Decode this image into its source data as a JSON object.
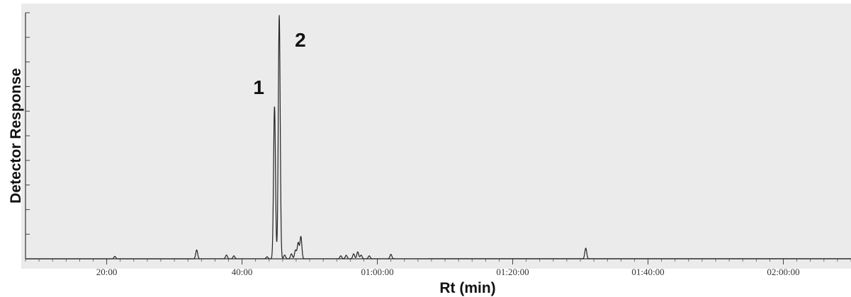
{
  "chart_data": {
    "type": "line",
    "title": "",
    "xlabel": "Rt  (min)",
    "ylabel": "Detector  Response",
    "xlim": [
      8,
      130
    ],
    "ylim": [
      0,
      100
    ],
    "y_tick_labels_shown": false,
    "grid": false,
    "x_ticks": [
      {
        "value": 20,
        "label": "20:00"
      },
      {
        "value": 40,
        "label": "40:00"
      },
      {
        "value": 60,
        "label": "01:00:00"
      },
      {
        "value": 80,
        "label": "01:20:00"
      },
      {
        "value": 100,
        "label": "01:40:00"
      },
      {
        "value": 120,
        "label": "02:00:00"
      }
    ],
    "series": [
      {
        "peaks": [
          {
            "x": 21.2,
            "y": 1.0
          },
          {
            "x": 33.3,
            "y": 3.6
          },
          {
            "x": 37.7,
            "y": 1.5
          },
          {
            "x": 38.8,
            "y": 1.2
          },
          {
            "x": 43.7,
            "y": 0.8
          },
          {
            "x": 44.8,
            "y": 62
          },
          {
            "x": 45.5,
            "y": 99
          },
          {
            "x": 46.3,
            "y": 1.5
          },
          {
            "x": 47.3,
            "y": 2.0
          },
          {
            "x": 47.9,
            "y": 3.5
          },
          {
            "x": 48.3,
            "y": 6.5
          },
          {
            "x": 48.7,
            "y": 9.0
          },
          {
            "x": 54.6,
            "y": 1.2
          },
          {
            "x": 55.4,
            "y": 1.4
          },
          {
            "x": 56.5,
            "y": 2.0
          },
          {
            "x": 57.1,
            "y": 2.8
          },
          {
            "x": 57.6,
            "y": 1.5
          },
          {
            "x": 58.8,
            "y": 1.2
          },
          {
            "x": 62.0,
            "y": 1.8
          },
          {
            "x": 90.8,
            "y": 4.3
          }
        ]
      }
    ],
    "annotations": [
      {
        "text": "1",
        "x": 44.8
      },
      {
        "text": "2",
        "x": 45.5
      }
    ]
  }
}
